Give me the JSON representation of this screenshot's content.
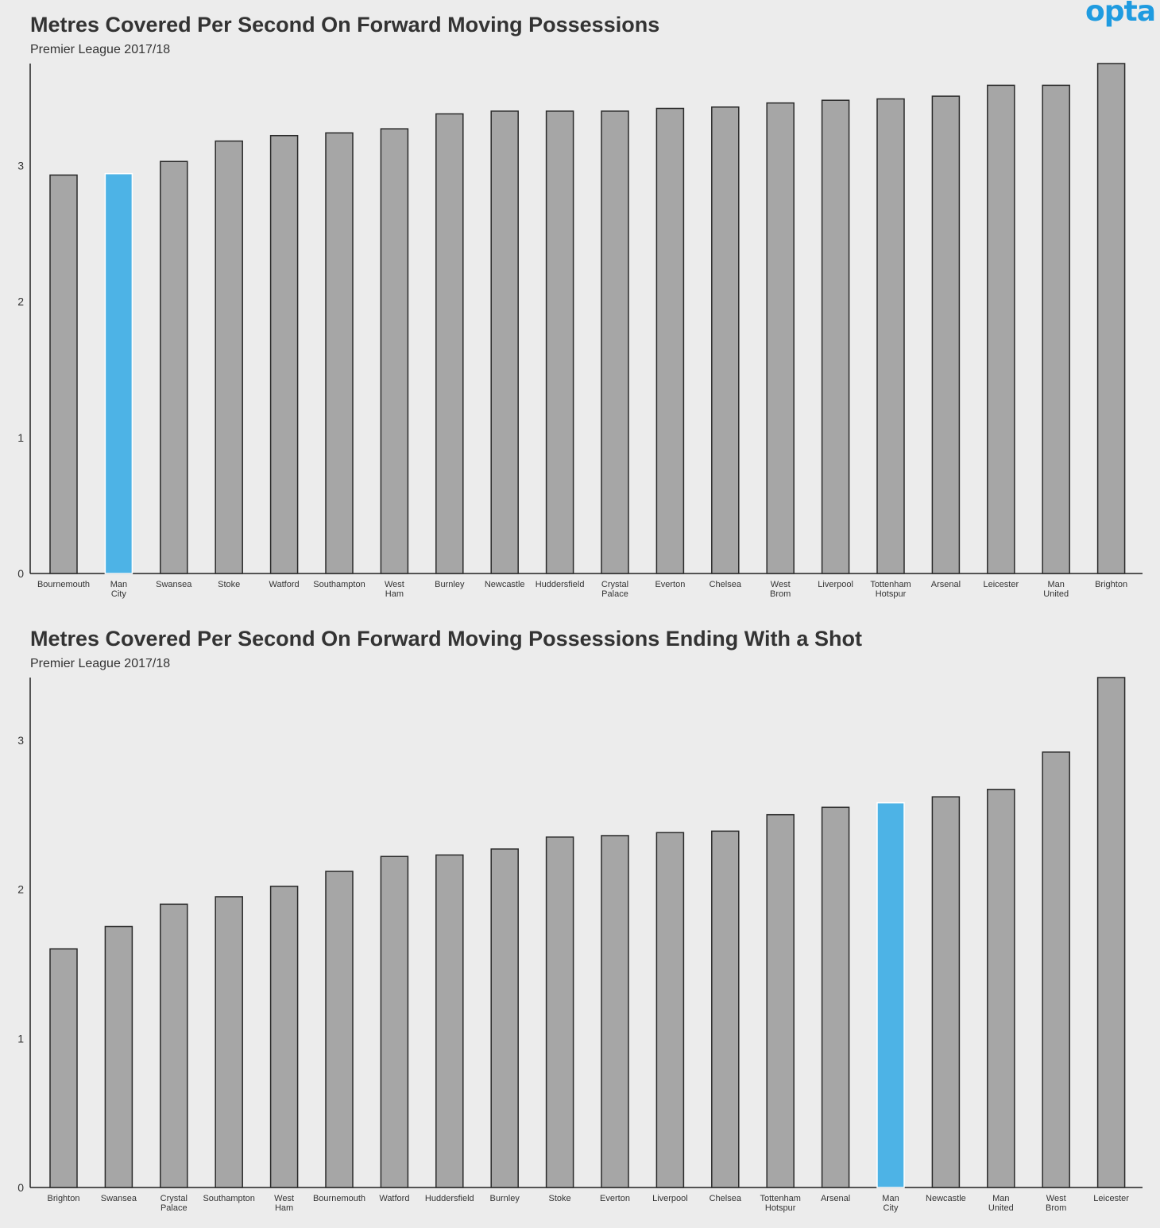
{
  "logo": "opta",
  "colors": {
    "bar": "#a6a6a6",
    "highlight": "#4db3e6",
    "stroke": "#2a2a2a",
    "background": "#ececec"
  },
  "chart_data": [
    {
      "type": "bar",
      "title": "Metres Covered Per Second On Forward Moving Possessions",
      "subtitle": "Premier League 2017/18",
      "ylim": [
        0,
        3.75
      ],
      "yticks": [
        0,
        1,
        2,
        3
      ],
      "highlight": "Man City",
      "grid": false,
      "categories": [
        "Bournemouth",
        "Man City",
        "Swansea",
        "Stoke",
        "Watford",
        "Southampton",
        "West Ham",
        "Burnley",
        "Newcastle",
        "Huddersfield",
        "Crystal Palace",
        "Everton",
        "Chelsea",
        "West Brom",
        "Liverpool",
        "Tottenham Hotspur",
        "Arsenal",
        "Leicester",
        "Man United",
        "Brighton"
      ],
      "values": [
        2.93,
        2.94,
        3.03,
        3.18,
        3.22,
        3.24,
        3.27,
        3.38,
        3.4,
        3.4,
        3.4,
        3.42,
        3.43,
        3.46,
        3.48,
        3.49,
        3.51,
        3.59,
        3.59,
        3.75
      ]
    },
    {
      "type": "bar",
      "title": "Metres Covered Per Second On Forward Moving Possessions Ending With a Shot",
      "subtitle": "Premier League 2017/18",
      "ylim": [
        0,
        3.42
      ],
      "yticks": [
        0,
        1,
        2,
        3
      ],
      "highlight": "Man City",
      "grid": false,
      "categories": [
        "Brighton",
        "Swansea",
        "Crystal Palace",
        "Southampton",
        "West Ham",
        "Bournemouth",
        "Watford",
        "Huddersfield",
        "Burnley",
        "Stoke",
        "Everton",
        "Liverpool",
        "Chelsea",
        "Tottenham Hotspur",
        "Arsenal",
        "Man City",
        "Newcastle",
        "Man United",
        "West Brom",
        "Leicester"
      ],
      "values": [
        1.6,
        1.75,
        1.9,
        1.95,
        2.02,
        2.12,
        2.22,
        2.23,
        2.27,
        2.35,
        2.36,
        2.38,
        2.39,
        2.5,
        2.55,
        2.58,
        2.62,
        2.67,
        2.92,
        3.42
      ]
    }
  ]
}
